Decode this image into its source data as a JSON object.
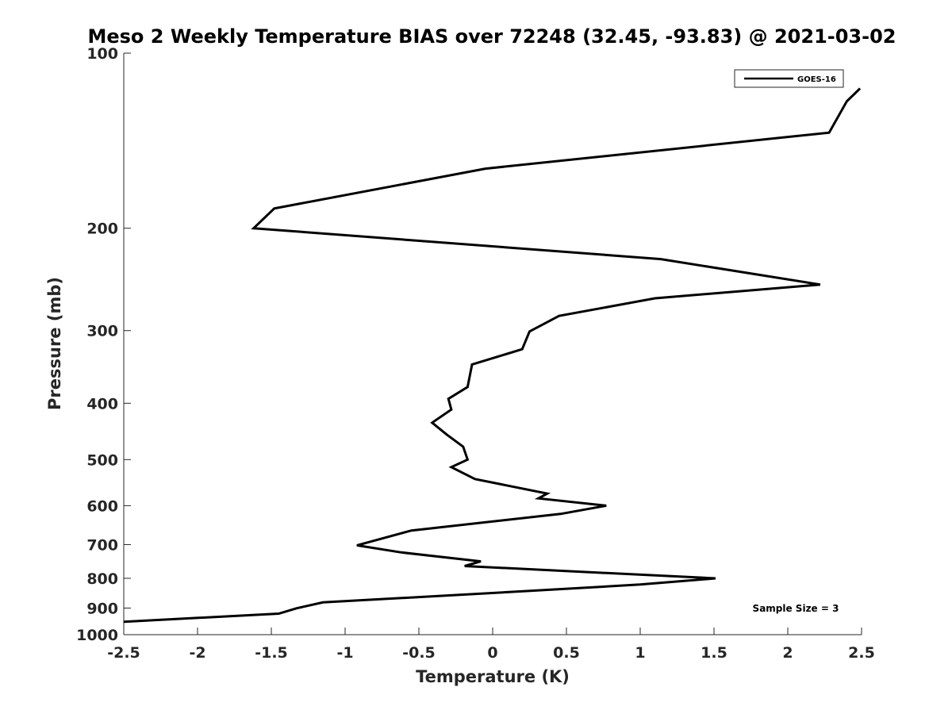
{
  "chart_data": {
    "type": "line",
    "title": "Meso 2 Weekly Temperature BIAS over 72248 (32.45, -93.83) @ 2021-03-02",
    "xlabel": "Temperature (K)",
    "ylabel": "Pressure (mb)",
    "xlim": [
      -2.5,
      2.5
    ],
    "ylim": [
      100,
      1000
    ],
    "yscale": "log",
    "yreversed": true,
    "xticks": [
      -2.5,
      -2,
      -1.5,
      -1,
      -0.5,
      0,
      0.5,
      1,
      1.5,
      2,
      2.5
    ],
    "xtick_labels": [
      "-2.5",
      "-2",
      "-1.5",
      "-1",
      "-0.5",
      "0",
      "0.5",
      "1",
      "1.5",
      "2",
      "2.5"
    ],
    "yticks": [
      100,
      200,
      300,
      400,
      500,
      600,
      700,
      800,
      900,
      1000
    ],
    "ytick_labels": [
      "100",
      "200",
      "300",
      "400",
      "500",
      "600",
      "700",
      "800",
      "900",
      "1000"
    ],
    "grid": false,
    "legend": "top-right",
    "annotation": "Sample Size = 3",
    "series": [
      {
        "name": "GOES-16",
        "color": "#000000",
        "points": [
          {
            "x": 2.49,
            "p": 115
          },
          {
            "x": 2.4,
            "p": 121
          },
          {
            "x": 2.28,
            "p": 137
          },
          {
            "x": -0.05,
            "p": 158
          },
          {
            "x": -1.48,
            "p": 185
          },
          {
            "x": -1.62,
            "p": 200
          },
          {
            "x": 1.14,
            "p": 226
          },
          {
            "x": 2.22,
            "p": 250
          },
          {
            "x": 1.1,
            "p": 264
          },
          {
            "x": 0.45,
            "p": 283
          },
          {
            "x": 0.25,
            "p": 301
          },
          {
            "x": 0.2,
            "p": 323
          },
          {
            "x": -0.14,
            "p": 343
          },
          {
            "x": -0.17,
            "p": 375
          },
          {
            "x": -0.3,
            "p": 393
          },
          {
            "x": -0.28,
            "p": 410
          },
          {
            "x": -0.41,
            "p": 432
          },
          {
            "x": -0.31,
            "p": 453
          },
          {
            "x": -0.2,
            "p": 475
          },
          {
            "x": -0.17,
            "p": 500
          },
          {
            "x": -0.28,
            "p": 515
          },
          {
            "x": -0.12,
            "p": 540
          },
          {
            "x": 0.37,
            "p": 572
          },
          {
            "x": 0.31,
            "p": 583
          },
          {
            "x": 0.77,
            "p": 600
          },
          {
            "x": 0.46,
            "p": 620
          },
          {
            "x": -0.55,
            "p": 662
          },
          {
            "x": -0.92,
            "p": 702
          },
          {
            "x": -0.62,
            "p": 722
          },
          {
            "x": -0.08,
            "p": 748
          },
          {
            "x": -0.19,
            "p": 762
          },
          {
            "x": 1.51,
            "p": 800
          },
          {
            "x": 1.0,
            "p": 820
          },
          {
            "x": 0.1,
            "p": 845
          },
          {
            "x": -1.15,
            "p": 880
          },
          {
            "x": -1.33,
            "p": 901
          },
          {
            "x": -1.45,
            "p": 920
          },
          {
            "x": -2.5,
            "p": 950
          }
        ]
      }
    ]
  }
}
